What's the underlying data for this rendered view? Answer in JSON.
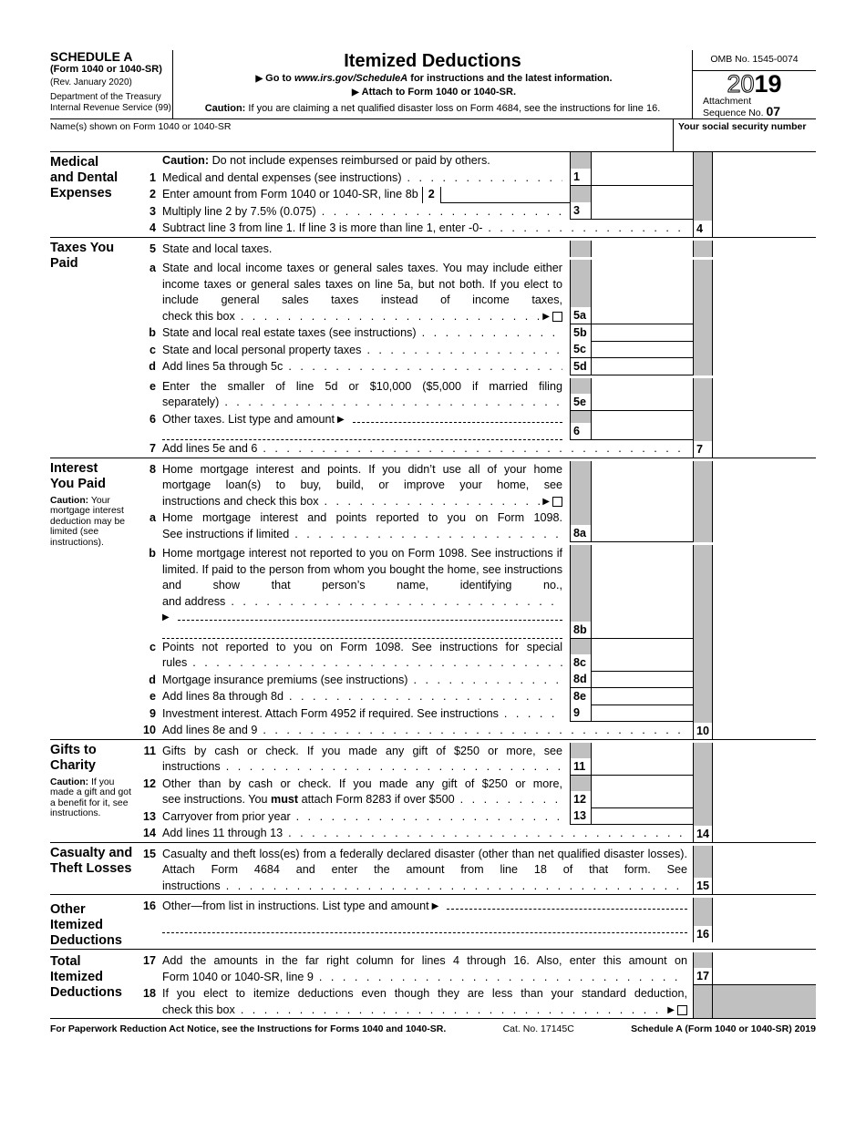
{
  "header": {
    "schedule": "SCHEDULE A",
    "form": "(Form 1040 or 1040-SR)",
    "rev": "(Rev. January 2020)",
    "dept": "Department of the Treasury",
    "irs": "Internal Revenue Service (99)",
    "title": "Itemized Deductions",
    "goto_prefix": "Go to ",
    "goto_url": "www.irs.gov/ScheduleA",
    "goto_suffix": " for instructions and the latest information.",
    "attach": "Attach to Form 1040 or 1040-SR.",
    "caution_label": "Caution:",
    "caution_text": " If you are claiming a net qualified disaster loss on Form 4684, see the instructions for line 16.",
    "omb": "OMB No. 1545-0074",
    "year_outline": "20",
    "year_bold": "19",
    "attachment": "Attachment",
    "sequence": "Sequence No.",
    "sequence_no": "07"
  },
  "name_label": "Name(s) shown on Form 1040 or 1040-SR",
  "ssn_label": "Your social security number",
  "medical": {
    "title": "Medical and Dental Expenses",
    "caution_label": "Caution:",
    "caution_text": " Do not include expenses reimbursed or paid by others.",
    "l1": {
      "num": "1",
      "text": "Medical and dental expenses (see instructions)"
    },
    "l2": {
      "num": "2",
      "text": "Enter amount from Form 1040 or 1040-SR, line 8b"
    },
    "l3": {
      "num": "3",
      "text": "Multiply line 2 by 7.5% (0.075)"
    },
    "l4": {
      "num": "4",
      "text": "Subtract line 3 from line 1. If line 3 is more than line 1, enter -0-"
    }
  },
  "taxes": {
    "title": "Taxes You Paid",
    "l5": {
      "num": "5",
      "text": "State and local taxes."
    },
    "l5a": {
      "num": "a",
      "box": "5a",
      "text": "State and local income taxes or general sales taxes. You may include either income taxes or general sales taxes on line 5a, but not both. If you elect to include general sales taxes instead of income taxes,",
      "last": "check this box"
    },
    "l5b": {
      "num": "b",
      "box": "5b",
      "text": "State and local real estate taxes (see instructions)"
    },
    "l5c": {
      "num": "c",
      "box": "5c",
      "text": "State and local personal property taxes"
    },
    "l5d": {
      "num": "d",
      "box": "5d",
      "text": "Add lines 5a through 5c"
    },
    "l5e": {
      "num": "e",
      "box": "5e",
      "text": "Enter the smaller of line 5d or $10,000 ($5,000 if married filing",
      "last": "separately)"
    },
    "l6": {
      "num": "6",
      "text": "Other taxes. List type and amount"
    },
    "l7": {
      "num": "7",
      "text": "Add lines 5e and 6"
    }
  },
  "interest": {
    "title": "Interest You Paid",
    "caution_label": "Caution:",
    "caution_text": " Your mortgage interest deduction may be limited (see instructions).",
    "l8": {
      "num": "8",
      "text": "Home mortgage interest and points. If you didn’t use all of your home mortgage loan(s) to buy, build, or improve your home, see",
      "last": "instructions and check this box"
    },
    "l8a": {
      "num": "a",
      "box": "8a",
      "text": "Home mortgage interest and points reported to you on Form 1098.",
      "last": "See instructions if limited"
    },
    "l8b": {
      "num": "b",
      "box": "8b",
      "text": "Home mortgage interest not reported to you on Form 1098. See instructions if limited. If paid to the person from whom you bought the home, see instructions and show that person’s name, identifying no.,",
      "last": "and address"
    },
    "l8c": {
      "num": "c",
      "box": "8c",
      "text": "Points not reported to you on Form 1098. See instructions for special",
      "last": "rules"
    },
    "l8d": {
      "num": "d",
      "box": "8d",
      "text": "Mortgage insurance premiums (see instructions)"
    },
    "l8e": {
      "num": "e",
      "box": "8e",
      "text": "Add lines 8a through 8d"
    },
    "l9": {
      "num": "9",
      "text": "Investment interest. Attach Form 4952 if required. See instructions"
    },
    "l10": {
      "num": "10",
      "text": "Add lines 8e and 9"
    }
  },
  "gifts": {
    "title": "Gifts to Charity",
    "caution_label": "Caution:",
    "caution_text": " If you made a gift and got a benefit for it, see instructions.",
    "l11": {
      "num": "11",
      "text": "Gifts by cash or check. If you made any gift of $250 or more, see",
      "last": "instructions"
    },
    "l12": {
      "num": "12",
      "text": "Other than by cash or check. If you made any gift of $250 or more,",
      "last_a": "see instructions. You ",
      "last_b": "must",
      "last_c": " attach Form 8283 if over $500"
    },
    "l13": {
      "num": "13",
      "text": "Carryover from prior year"
    },
    "l14": {
      "num": "14",
      "text": "Add lines 11 through 13"
    }
  },
  "casualty": {
    "title": "Casualty and Theft Losses",
    "l15": {
      "num": "15",
      "text": "Casualty and theft loss(es) from a federally declared disaster (other than net qualified disaster losses). Attach Form 4684 and enter the amount from line 18 of that form. See",
      "last": "instructions"
    }
  },
  "other": {
    "title": "Other Itemized Deductions",
    "l16": {
      "num": "16",
      "text": "Other—from list in instructions. List type and amount"
    }
  },
  "total": {
    "title": "Total Itemized Deductions",
    "l17": {
      "num": "17",
      "text": "Add the amounts in the far right column for lines 4 through 16. Also, enter this amount on",
      "last": "Form 1040 or 1040-SR, line 9"
    },
    "l18": {
      "num": "18",
      "text": "If you elect to itemize deductions even though they are less than your standard deduction,",
      "last": "check this box"
    }
  },
  "footer": {
    "notice": "For Paperwork Reduction Act Notice, see the Instructions for Forms 1040 and 1040-SR.",
    "cat": "Cat. No. 17145C",
    "form": "Schedule A (Form 1040 or 1040-SR) 2019"
  },
  "colors": {
    "shade": "#c0c0c0",
    "ink": "#000000"
  }
}
